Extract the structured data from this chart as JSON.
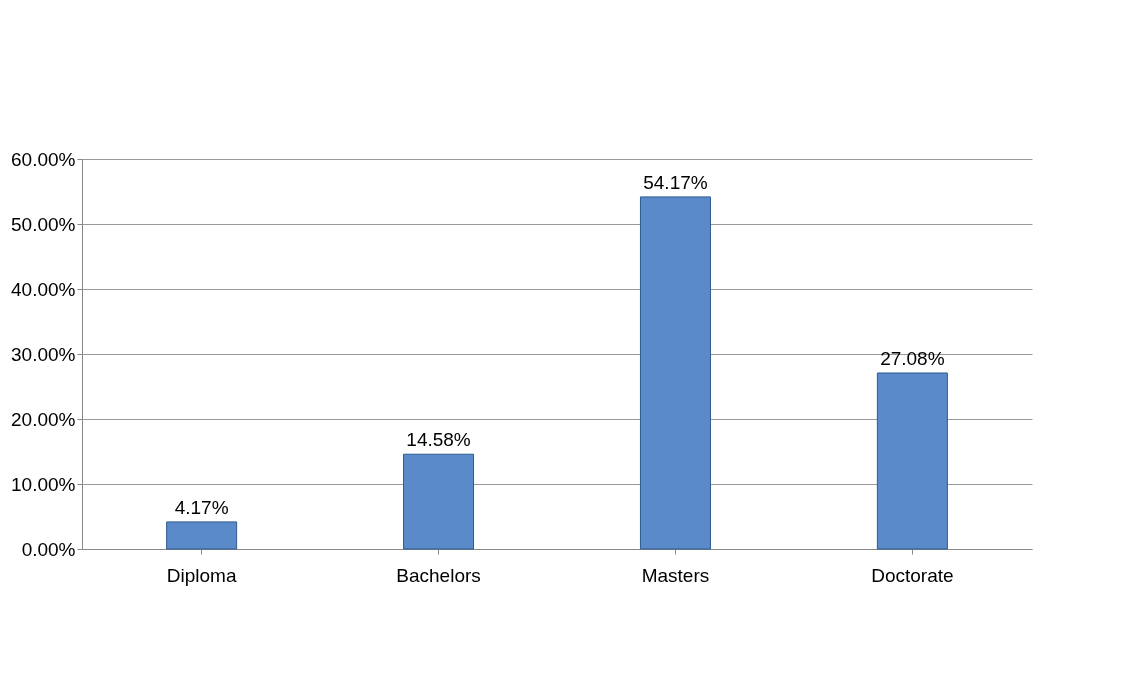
{
  "chart_data": {
    "type": "bar",
    "categories": [
      "Diploma",
      "Bachelors",
      "Masters",
      "Doctorate"
    ],
    "values": [
      4.17,
      14.58,
      54.17,
      27.08
    ],
    "value_labels": [
      "4.17%",
      "14.58%",
      "54.17%",
      "27.08%"
    ],
    "color": "#5a8ac9",
    "ylim": [
      0,
      60
    ],
    "yticks": [
      {
        "value": 0,
        "label": "0.00%"
      },
      {
        "value": 10,
        "label": "10.00%"
      },
      {
        "value": 20,
        "label": "20.00%"
      },
      {
        "value": 30,
        "label": "30.00%"
      },
      {
        "value": 40,
        "label": "40.00%"
      },
      {
        "value": 50,
        "label": "50.00%"
      },
      {
        "value": 60,
        "label": "60.00%"
      }
    ],
    "grid": "y"
  }
}
